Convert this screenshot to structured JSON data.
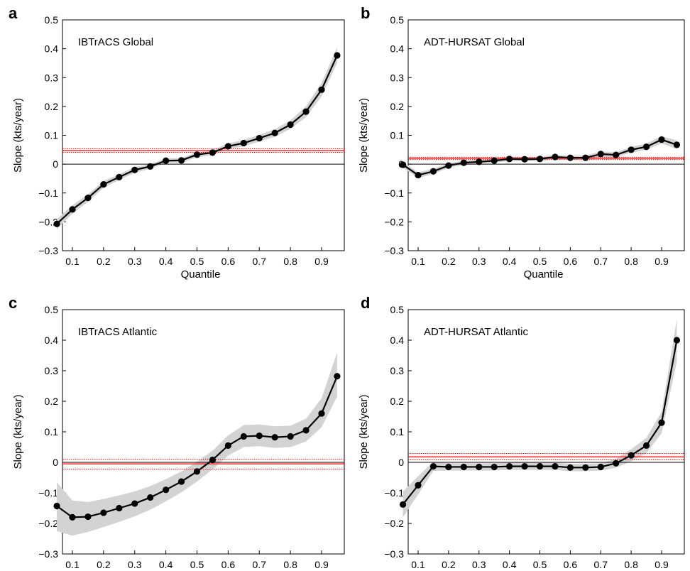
{
  "colors": {
    "series": "#000000",
    "ci_band": "#d3d3d3",
    "reference_line": "#ff0000",
    "zero_line": "#000000"
  },
  "chart_data": [
    {
      "panel": "a",
      "type": "line",
      "title": "IBTrACS Global",
      "xlabel": "Quantile",
      "ylabel": "Slope (kts/year)",
      "xlim": [
        0,
        1
      ],
      "ylim": [
        -0.3,
        0.5
      ],
      "xticks": [
        "0.1",
        "0.2",
        "0.3",
        "0.4",
        "0.5",
        "0.6",
        "0.7",
        "0.8",
        "0.9"
      ],
      "yticks": [
        "−0.3",
        "−0.2",
        "−0.1",
        "0",
        "0.1",
        "0.2",
        "0.3",
        "0.4",
        "0.5"
      ],
      "x": [
        0.05,
        0.1,
        0.15,
        0.2,
        0.25,
        0.3,
        0.35,
        0.4,
        0.45,
        0.5,
        0.55,
        0.6,
        0.65,
        0.7,
        0.75,
        0.8,
        0.85,
        0.9,
        0.95
      ],
      "y": [
        -0.207,
        -0.157,
        -0.117,
        -0.07,
        -0.045,
        -0.02,
        -0.008,
        0.012,
        0.013,
        0.033,
        0.04,
        0.062,
        0.073,
        0.09,
        0.108,
        0.137,
        0.182,
        0.258,
        0.377
      ],
      "ci_lower": [
        -0.225,
        -0.172,
        -0.13,
        -0.082,
        -0.055,
        -0.03,
        -0.016,
        0.004,
        0.005,
        0.024,
        0.031,
        0.052,
        0.062,
        0.078,
        0.095,
        0.122,
        0.163,
        0.235,
        0.35
      ],
      "ci_upper": [
        -0.19,
        -0.142,
        -0.104,
        -0.058,
        -0.035,
        -0.01,
        0.0,
        0.02,
        0.021,
        0.042,
        0.049,
        0.072,
        0.084,
        0.102,
        0.121,
        0.152,
        0.201,
        0.282,
        0.405
      ],
      "reference_line": 0.047,
      "reference_ci": [
        0.041,
        0.053
      ],
      "grid": false,
      "legend": "none"
    },
    {
      "panel": "b",
      "type": "line",
      "title": "ADT-HURSAT Global",
      "xlabel": "Quantile",
      "ylabel": "Slope (kts/year)",
      "xlim": [
        0,
        1
      ],
      "ylim": [
        -0.3,
        0.5
      ],
      "xticks": [
        "0.1",
        "0.2",
        "0.3",
        "0.4",
        "0.5",
        "0.6",
        "0.7",
        "0.8",
        "0.9"
      ],
      "yticks": [
        "−0.3",
        "−0.2",
        "−0.1",
        "0",
        "0.1",
        "0.2",
        "0.3",
        "0.4",
        "0.5"
      ],
      "x": [
        0.05,
        0.1,
        0.15,
        0.2,
        0.25,
        0.3,
        0.35,
        0.4,
        0.45,
        0.5,
        0.55,
        0.6,
        0.65,
        0.7,
        0.75,
        0.8,
        0.85,
        0.9,
        0.95
      ],
      "y": [
        -0.002,
        -0.038,
        -0.025,
        -0.005,
        0.005,
        0.008,
        0.012,
        0.018,
        0.017,
        0.018,
        0.025,
        0.022,
        0.022,
        0.035,
        0.032,
        0.05,
        0.06,
        0.085,
        0.067
      ],
      "ci_lower": [
        -0.012,
        -0.048,
        -0.034,
        -0.013,
        -0.002,
        0.001,
        0.005,
        0.011,
        0.01,
        0.011,
        0.018,
        0.015,
        0.014,
        0.026,
        0.023,
        0.04,
        0.049,
        0.072,
        0.052
      ],
      "ci_upper": [
        0.008,
        -0.028,
        -0.016,
        0.003,
        0.012,
        0.015,
        0.019,
        0.025,
        0.024,
        0.025,
        0.032,
        0.029,
        0.03,
        0.044,
        0.041,
        0.06,
        0.071,
        0.098,
        0.082
      ],
      "reference_line": 0.02,
      "reference_ci": [
        0.016,
        0.024
      ],
      "grid": false,
      "legend": "none"
    },
    {
      "panel": "c",
      "type": "line",
      "title": "IBTrACS Atlantic",
      "xlabel": "Quantile",
      "ylabel": "Slope (kts/year)",
      "xlim": [
        0,
        1
      ],
      "ylim": [
        -0.3,
        0.5
      ],
      "xticks": [
        "0.1",
        "0.2",
        "0.3",
        "0.4",
        "0.5",
        "0.6",
        "0.7",
        "0.8",
        "0.9"
      ],
      "yticks": [
        "−0.3",
        "−0.2",
        "−0.1",
        "0",
        "0.1",
        "0.2",
        "0.3",
        "0.4",
        "0.5"
      ],
      "x": [
        0.05,
        0.1,
        0.15,
        0.2,
        0.25,
        0.3,
        0.35,
        0.4,
        0.45,
        0.5,
        0.55,
        0.6,
        0.65,
        0.7,
        0.75,
        0.8,
        0.85,
        0.9,
        0.95
      ],
      "y": [
        -0.143,
        -0.18,
        -0.178,
        -0.165,
        -0.15,
        -0.135,
        -0.115,
        -0.09,
        -0.063,
        -0.03,
        0.008,
        0.055,
        0.085,
        0.087,
        0.082,
        0.085,
        0.105,
        0.16,
        0.282
      ],
      "ci_lower": [
        -0.225,
        -0.24,
        -0.228,
        -0.212,
        -0.195,
        -0.177,
        -0.155,
        -0.128,
        -0.098,
        -0.063,
        -0.023,
        0.022,
        0.05,
        0.053,
        0.047,
        0.05,
        0.068,
        0.115,
        0.215
      ],
      "ci_upper": [
        -0.065,
        -0.125,
        -0.13,
        -0.12,
        -0.108,
        -0.095,
        -0.078,
        -0.055,
        -0.03,
        0.002,
        0.038,
        0.088,
        0.122,
        0.124,
        0.118,
        0.12,
        0.143,
        0.21,
        0.36
      ],
      "reference_line": -0.005,
      "reference_ci": [
        -0.022,
        0.01
      ],
      "grid": false,
      "legend": "none"
    },
    {
      "panel": "d",
      "type": "line",
      "title": "ADT-HURSAT Atlantic",
      "xlabel": "Quantile",
      "ylabel": "Slope (kts/year)",
      "xlim": [
        0,
        1
      ],
      "ylim": [
        -0.3,
        0.5
      ],
      "xticks": [
        "0.1",
        "0.2",
        "0.3",
        "0.4",
        "0.5",
        "0.6",
        "0.7",
        "0.8",
        "0.9"
      ],
      "yticks": [
        "−0.3",
        "−0.2",
        "−0.1",
        "0",
        "0.1",
        "0.2",
        "0.3",
        "0.4",
        "0.5"
      ],
      "x": [
        0.05,
        0.1,
        0.15,
        0.2,
        0.25,
        0.3,
        0.35,
        0.4,
        0.45,
        0.5,
        0.55,
        0.6,
        0.65,
        0.7,
        0.75,
        0.8,
        0.85,
        0.9,
        0.95
      ],
      "y": [
        -0.138,
        -0.075,
        -0.013,
        -0.015,
        -0.015,
        -0.015,
        -0.015,
        -0.013,
        -0.013,
        -0.013,
        -0.013,
        -0.017,
        -0.017,
        -0.015,
        -0.003,
        0.023,
        0.055,
        0.13,
        0.4
      ],
      "ci_lower": [
        -0.18,
        -0.105,
        -0.028,
        -0.027,
        -0.027,
        -0.027,
        -0.027,
        -0.025,
        -0.025,
        -0.025,
        -0.025,
        -0.029,
        -0.029,
        -0.027,
        -0.018,
        0.003,
        0.03,
        0.095,
        0.33
      ],
      "ci_upper": [
        -0.096,
        -0.045,
        0.002,
        -0.003,
        -0.003,
        -0.003,
        -0.003,
        -0.001,
        -0.001,
        -0.001,
        -0.001,
        -0.005,
        -0.005,
        -0.003,
        0.012,
        0.043,
        0.08,
        0.165,
        0.47
      ],
      "reference_line": 0.018,
      "reference_ci": [
        0.008,
        0.029
      ],
      "grid": false,
      "legend": "none"
    }
  ]
}
